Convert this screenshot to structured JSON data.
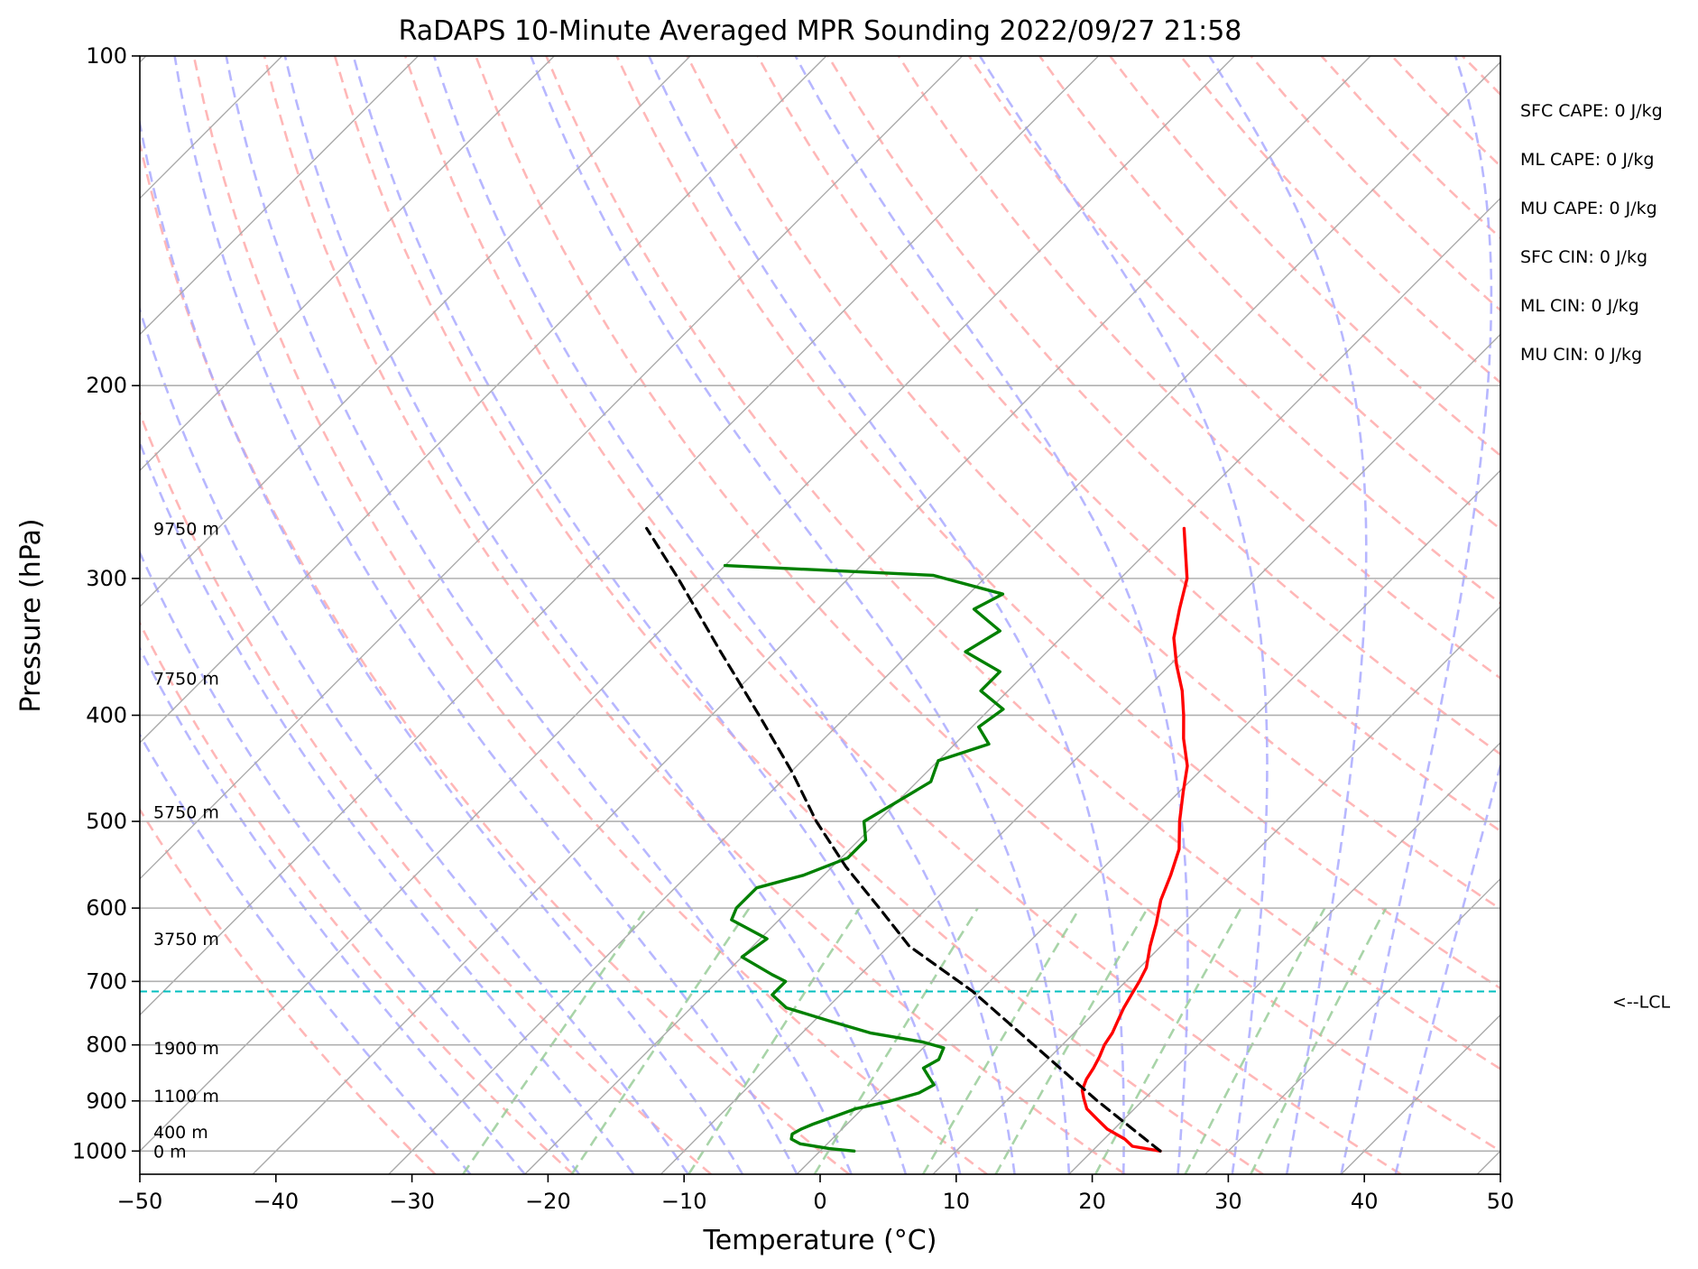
{
  "chart_data": {
    "type": "line",
    "title": "RaDAPS 10-Minute Averaged MPR Sounding 2022/09/27 21:58",
    "xlabel": "Temperature (°C)",
    "ylabel": "Pressure (hPa)",
    "xlim": [
      -50,
      50
    ],
    "ylim": [
      1050,
      100
    ],
    "y_scale": "log",
    "skew": "skew-T log-P",
    "grid": true,
    "x_ticks": [
      "−50",
      "−40",
      "−30",
      "−20",
      "−10",
      "0",
      "10",
      "20",
      "30",
      "40",
      "50"
    ],
    "y_ticks": [
      {
        "p": 100,
        "label": "100"
      },
      {
        "p": 200,
        "label": "200"
      },
      {
        "p": 300,
        "label": "300"
      },
      {
        "p": 400,
        "label": "400"
      },
      {
        "p": 500,
        "label": "500"
      },
      {
        "p": 600,
        "label": "600"
      },
      {
        "p": 700,
        "label": "700"
      },
      {
        "p": 800,
        "label": "800"
      },
      {
        "p": 900,
        "label": "900"
      },
      {
        "p": 1000,
        "label": "1000"
      }
    ],
    "height_labels": [
      {
        "p": 1000,
        "label": "0 m"
      },
      {
        "p": 960,
        "label": "400 m"
      },
      {
        "p": 890,
        "label": "1100 m"
      },
      {
        "p": 805,
        "label": "1900 m"
      },
      {
        "p": 640,
        "label": "3750 m"
      },
      {
        "p": 490,
        "label": "5750 m"
      },
      {
        "p": 370,
        "label": "7750 m"
      },
      {
        "p": 270,
        "label": "9750 m"
      }
    ],
    "series": [
      {
        "role": "temperature",
        "color": "#ff0000",
        "points": [
          [
            1000,
            25.0
          ],
          [
            990,
            22.6
          ],
          [
            975,
            21.5
          ],
          [
            955,
            19.5
          ],
          [
            935,
            18.0
          ],
          [
            915,
            16.5
          ],
          [
            895,
            15.5
          ],
          [
            880,
            14.8
          ],
          [
            860,
            14.3
          ],
          [
            840,
            14.0
          ],
          [
            820,
            13.6
          ],
          [
            800,
            13.1
          ],
          [
            780,
            12.8
          ],
          [
            760,
            12.3
          ],
          [
            740,
            11.8
          ],
          [
            720,
            11.4
          ],
          [
            700,
            11.0
          ],
          [
            680,
            10.5
          ],
          [
            650,
            9.2
          ],
          [
            620,
            8.0
          ],
          [
            590,
            6.6
          ],
          [
            560,
            5.5
          ],
          [
            530,
            4.2
          ],
          [
            500,
            2.2
          ],
          [
            470,
            0.3
          ],
          [
            445,
            -1.3
          ],
          [
            420,
            -3.6
          ],
          [
            400,
            -5.3
          ],
          [
            380,
            -7.2
          ],
          [
            360,
            -9.5
          ],
          [
            340,
            -11.7
          ],
          [
            320,
            -13.4
          ],
          [
            300,
            -15.1
          ],
          [
            285,
            -17.0
          ],
          [
            270,
            -19.0
          ]
        ]
      },
      {
        "role": "dewpoint",
        "color": "#008000",
        "points": [
          [
            1000,
            2.5
          ],
          [
            995,
            0.5
          ],
          [
            985,
            -2.0
          ],
          [
            975,
            -3.0
          ],
          [
            965,
            -3.3
          ],
          [
            955,
            -3.0
          ],
          [
            945,
            -2.5
          ],
          [
            930,
            -1.5
          ],
          [
            915,
            -0.5
          ],
          [
            900,
            1.5
          ],
          [
            885,
            3.0
          ],
          [
            870,
            3.5
          ],
          [
            855,
            2.5
          ],
          [
            840,
            1.5
          ],
          [
            825,
            2.0
          ],
          [
            805,
            1.5
          ],
          [
            795,
            -0.5
          ],
          [
            780,
            -5.0
          ],
          [
            760,
            -9.0
          ],
          [
            740,
            -13.0
          ],
          [
            720,
            -15.0
          ],
          [
            700,
            -15.0
          ],
          [
            690,
            -16.5
          ],
          [
            665,
            -20.0
          ],
          [
            640,
            -19.5
          ],
          [
            615,
            -23.5
          ],
          [
            600,
            -24.0
          ],
          [
            575,
            -24.0
          ],
          [
            560,
            -21.5
          ],
          [
            540,
            -19.5
          ],
          [
            520,
            -19.5
          ],
          [
            500,
            -21.0
          ],
          [
            480,
            -20.0
          ],
          [
            460,
            -19.0
          ],
          [
            440,
            -20.0
          ],
          [
            425,
            -17.5
          ],
          [
            410,
            -19.5
          ],
          [
            395,
            -19.0
          ],
          [
            380,
            -22.0
          ],
          [
            365,
            -22.0
          ],
          [
            350,
            -26.0
          ],
          [
            335,
            -25.0
          ],
          [
            320,
            -28.5
          ],
          [
            310,
            -27.5
          ],
          [
            298,
            -34.0
          ],
          [
            292,
            -50.0
          ]
        ]
      },
      {
        "role": "parcel",
        "color": "#000000",
        "style": "dashed",
        "points": [
          [
            1000,
            25.0
          ],
          [
            900,
            16.7
          ],
          [
            800,
            7.9
          ],
          [
            715,
            -0.5
          ],
          [
            650,
            -8.5
          ],
          [
            600,
            -13.5
          ],
          [
            550,
            -19.0
          ],
          [
            500,
            -24.5
          ],
          [
            450,
            -30.0
          ],
          [
            400,
            -36.5
          ],
          [
            350,
            -44.0
          ],
          [
            300,
            -52.5
          ],
          [
            270,
            -58.5
          ]
        ]
      }
    ],
    "lcl": {
      "p": 715,
      "label": "<--LCL",
      "color": "#00bfbf"
    },
    "background_lines": {
      "isotherms_color": "#aaaaaa",
      "dry_adiabats_color": "#ffaaaa",
      "moist_adiabats_color": "#aaaaff",
      "mixing_ratio_color": "#99cc99"
    },
    "indices": [
      "SFC CAPE: 0 J/kg",
      "ML CAPE: 0 J/kg",
      "MU CAPE: 0 J/kg",
      "SFC CIN: 0 J/kg",
      "ML CIN: 0 J/kg",
      "MU CIN: 0 J/kg"
    ]
  }
}
